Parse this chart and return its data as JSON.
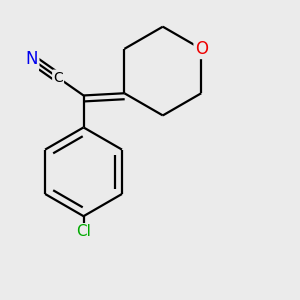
{
  "background_color": "#ebebeb",
  "atom_colors": {
    "N": "#0000ee",
    "O": "#ee0000",
    "Cl": "#00aa00",
    "C": "#000000"
  },
  "font_size_atoms": 10,
  "line_width": 1.6,
  "figure_size": [
    3.0,
    3.0
  ],
  "dpi": 100
}
